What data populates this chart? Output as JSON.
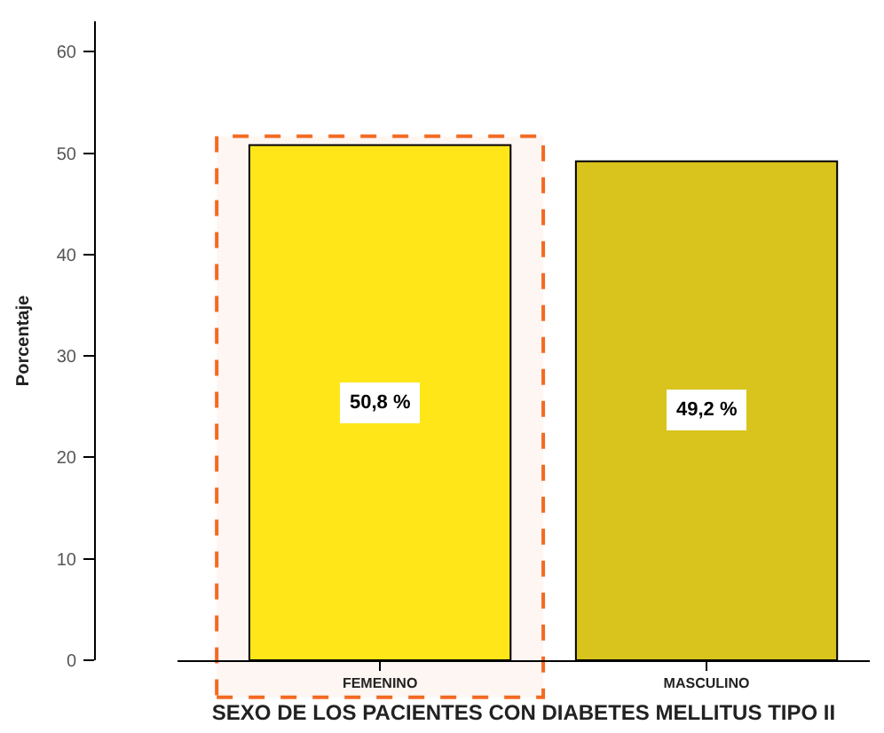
{
  "chart_data": {
    "type": "bar",
    "xlabel": "SEXO DE LOS PACIENTES CON DIABETES MELLITUS TIPO II",
    "ylabel": "Porcentaje",
    "categories": [
      "FEMENINO",
      "MASCULINO"
    ],
    "values": [
      50.8,
      49.2
    ],
    "colors": [
      "#ffe619",
      "#d8c41c"
    ],
    "value_labels": [
      "50,8 %",
      "49,2 %"
    ],
    "ylim": [
      0,
      63
    ],
    "yticks": [
      0,
      10,
      20,
      30,
      40,
      50,
      60
    ],
    "bands": [
      {
        "axis": "x",
        "from": "FEMENINO",
        "to": "FEMENINO",
        "color": "#f26a21"
      }
    ]
  }
}
